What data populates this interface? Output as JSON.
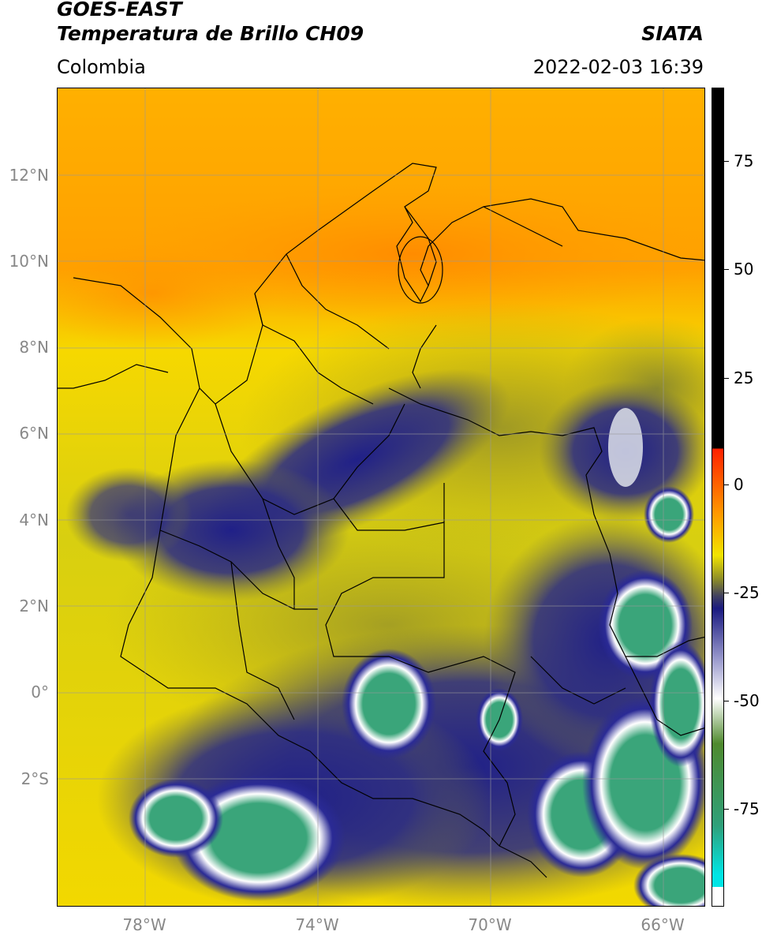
{
  "header": {
    "title_line1": "GOES-EAST",
    "title_line2": "Temperatura de Brillo CH09",
    "agency": "SIATA",
    "region": "Colombia",
    "timestamp": "2022-02-03 16:39"
  },
  "map": {
    "lat_labels": [
      "12°N",
      "10°N",
      "8°N",
      "6°N",
      "4°N",
      "2°N",
      "0°",
      "2°S"
    ],
    "lon_labels": [
      "78°W",
      "74°W",
      "70°W",
      "66°W"
    ]
  },
  "colorbar": {
    "tick_labels": [
      "75",
      "50",
      "25",
      "0",
      "-25",
      "-50",
      "-75"
    ],
    "colors": {
      "cyan": "#00e5e5",
      "teal": "#2fa07a",
      "green": "#4f8a2e",
      "white": "#ffffff",
      "navy": "#1a1a80",
      "olive": "#8a8a2a",
      "yellow": "#f2e400",
      "orange": "#ff9a00",
      "red": "#ff2000",
      "black": "#000000"
    }
  }
}
